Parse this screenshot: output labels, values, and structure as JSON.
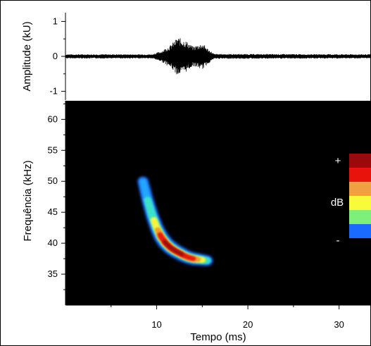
{
  "chart_data": [
    {
      "type": "line",
      "ylabel": "Amplitude (kU)",
      "ylim": [
        -1.25,
        1.25
      ],
      "yticks": [
        {
          "value": 1,
          "label": "1"
        },
        {
          "value": 0,
          "label": "0"
        },
        {
          "value": -1,
          "label": "-1"
        }
      ],
      "xlim": [
        0,
        33.5
      ],
      "series": [
        {
          "color": "#000000",
          "envelope": [
            {
              "x": 0,
              "amp": 0.06
            },
            {
              "x": 9.5,
              "amp": 0.06
            },
            {
              "x": 10.5,
              "amp": 0.15
            },
            {
              "x": 11.5,
              "amp": 0.32
            },
            {
              "x": 12.3,
              "amp": 0.55
            },
            {
              "x": 13.2,
              "amp": 0.45
            },
            {
              "x": 14.0,
              "amp": 0.28
            },
            {
              "x": 15.0,
              "amp": 0.38
            },
            {
              "x": 15.7,
              "amp": 0.2
            },
            {
              "x": 16.3,
              "amp": 0.07
            },
            {
              "x": 33.5,
              "amp": 0.06
            }
          ]
        }
      ]
    },
    {
      "type": "heatmap",
      "background": "#000000",
      "xlabel": "Tempo (ms)",
      "ylabel": "Frequência (kHz)",
      "xlim": [
        0,
        33.5
      ],
      "ylim": [
        30,
        63
      ],
      "xticks": [
        {
          "value": 10,
          "label": "10"
        },
        {
          "value": 20,
          "label": "20"
        },
        {
          "value": 30,
          "label": "30"
        }
      ],
      "yticks": [
        {
          "value": 35,
          "label": "35"
        },
        {
          "value": 40,
          "label": "40"
        },
        {
          "value": 45,
          "label": "45"
        },
        {
          "value": 50,
          "label": "50"
        },
        {
          "value": 55,
          "label": "55"
        },
        {
          "value": 60,
          "label": "60"
        }
      ],
      "call_contour": [
        {
          "t": 8.5,
          "f": 50,
          "level": 0.2
        },
        {
          "t": 9.0,
          "f": 47,
          "level": 0.35
        },
        {
          "t": 9.5,
          "f": 44.5,
          "level": 0.5
        },
        {
          "t": 10.0,
          "f": 42.5,
          "level": 0.65
        },
        {
          "t": 10.5,
          "f": 41,
          "level": 0.85
        },
        {
          "t": 11.0,
          "f": 40,
          "level": 0.95
        },
        {
          "t": 11.5,
          "f": 39.3,
          "level": 1.0
        },
        {
          "t": 12.0,
          "f": 38.8,
          "level": 1.0
        },
        {
          "t": 12.5,
          "f": 38.4,
          "level": 0.95
        },
        {
          "t": 13.0,
          "f": 38.0,
          "level": 0.9
        },
        {
          "t": 13.5,
          "f": 37.7,
          "level": 0.85
        },
        {
          "t": 14.0,
          "f": 37.5,
          "level": 0.8
        },
        {
          "t": 14.5,
          "f": 37.4,
          "level": 0.7
        },
        {
          "t": 15.0,
          "f": 37.3,
          "level": 0.55
        },
        {
          "t": 15.5,
          "f": 37.2,
          "level": 0.4
        }
      ],
      "colorscale": {
        "label": "dB",
        "max_label": "+",
        "min_label": "-",
        "colors_top_to_bottom": [
          "#9b0a0a",
          "#e8140c",
          "#f0a040",
          "#fafa3c",
          "#7ef07a",
          "#1a6aff"
        ]
      }
    }
  ]
}
